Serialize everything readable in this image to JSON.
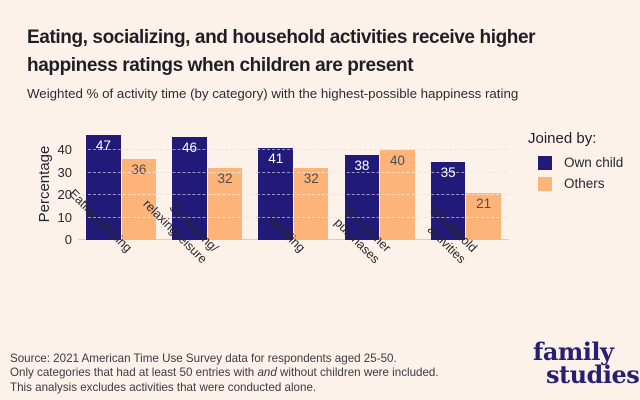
{
  "header": {
    "title_lines": [
      "Eating, socializing, and household activities receive higher",
      "happiness ratings when children are present"
    ],
    "subtitle": "Weighted % of activity time (by category) with the highest-possible happiness rating"
  },
  "chart_data": {
    "type": "bar",
    "categories": [
      "Eating/drinking",
      "Socializing/\nrelaxing/leisure",
      "Traveling",
      "Consumer\npurchases",
      "Household\nactivities"
    ],
    "series": [
      {
        "name": "Own child",
        "color": "#221a78",
        "values": [
          47,
          46,
          41,
          38,
          35
        ]
      },
      {
        "name": "Others",
        "color": "#feb478",
        "values": [
          36,
          32,
          32,
          40,
          21
        ]
      }
    ],
    "ylabel": "Percentage",
    "yticks": [
      0,
      10,
      20,
      30,
      40
    ],
    "ylim": [
      0,
      50
    ],
    "grid": true,
    "bar_value_labels": true,
    "legend_title": "Joined by:",
    "legend_position": "right"
  },
  "footer": {
    "source_lines": [
      [
        {
          "t": "Source: 2021 American Time Use Survey data for respondents aged 25-50."
        }
      ],
      [
        {
          "t": "Only categories that had at least 50 entries with "
        },
        {
          "t": "and",
          "i": true
        },
        {
          "t": " without children were included."
        }
      ],
      [
        {
          "t": "This analysis excludes activities that were conducted alone."
        }
      ]
    ],
    "logo_lines": [
      "family",
      "studies"
    ]
  },
  "colors": {
    "background": "#fdf2ea",
    "own_child": "#221a78",
    "others": "#feb478",
    "grid_line": "#eadfd8",
    "axis_line": "#d9cec8",
    "title_text": "#1e1e25",
    "body_text": "#3a3a42",
    "value_label_on_navy": "#ffffff",
    "value_label_on_orange": "#4d4d55",
    "logo_navy": "#262073"
  }
}
